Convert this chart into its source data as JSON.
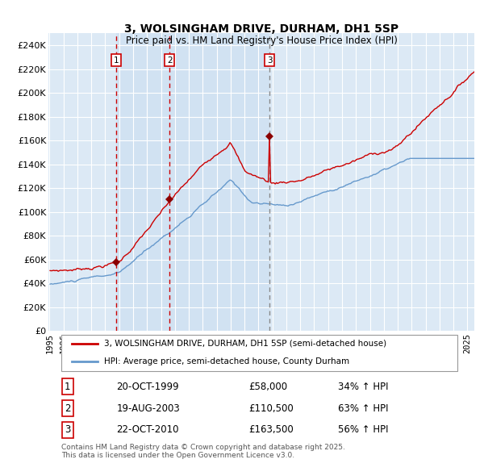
{
  "title1": "3, WOLSINGHAM DRIVE, DURHAM, DH1 5SP",
  "title2": "Price paid vs. HM Land Registry's House Price Index (HPI)",
  "bg_color": "#dce9f5",
  "fig_bg_color": "#ffffff",
  "red_line_color": "#cc0000",
  "blue_line_color": "#6699cc",
  "red_marker_color": "#8b0000",
  "grid_color": "#ffffff",
  "sale1_date": "20-OCT-1999",
  "sale1_price": 58000,
  "sale1_pct": "34%",
  "sale2_date": "19-AUG-2003",
  "sale2_price": 110500,
  "sale2_pct": "63%",
  "sale3_date": "22-OCT-2010",
  "sale3_price": 163500,
  "sale3_pct": "56%",
  "ylabel_ticks": [
    "£0",
    "£20K",
    "£40K",
    "£60K",
    "£80K",
    "£100K",
    "£120K",
    "£140K",
    "£160K",
    "£180K",
    "£200K",
    "£220K",
    "£240K"
  ],
  "ylim_max": 250000,
  "legend_label1": "3, WOLSINGHAM DRIVE, DURHAM, DH1 5SP (semi-detached house)",
  "legend_label2": "HPI: Average price, semi-detached house, County Durham",
  "footer": "Contains HM Land Registry data © Crown copyright and database right 2025.\nThis data is licensed under the Open Government Licence v3.0."
}
